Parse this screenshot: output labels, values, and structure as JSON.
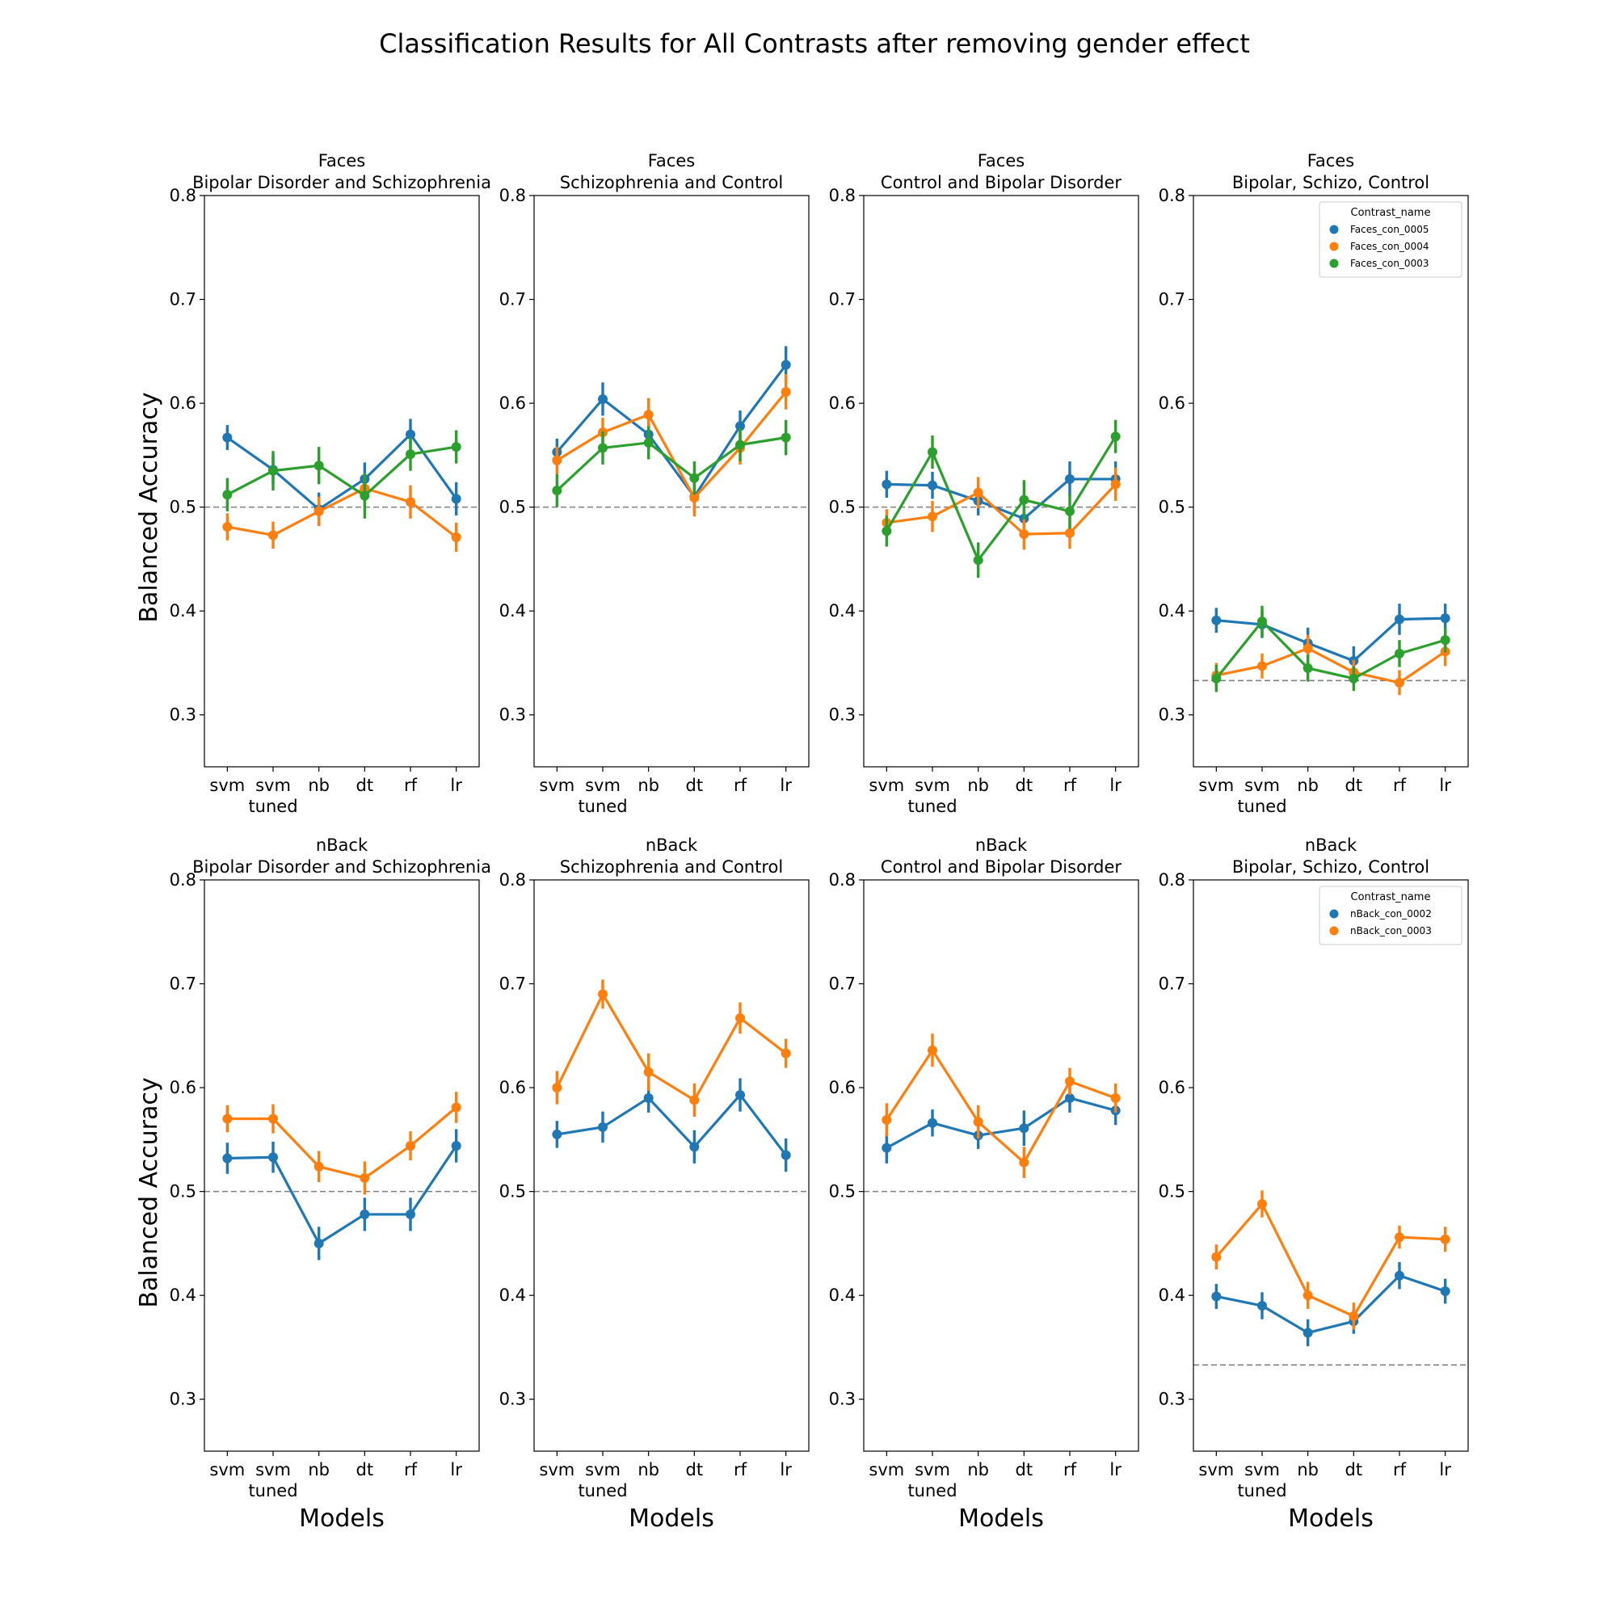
{
  "title": "Classification Results for All Contrasts after removing gender effect",
  "chart_data": {
    "type": "line",
    "title": "Classification Results for All Contrasts after removing gender effect",
    "xlabel": "Models",
    "ylabel": "Balanced Accuracy",
    "categories": [
      "svm",
      "svm\ntuned",
      "nb",
      "dt",
      "rf",
      "lr"
    ],
    "ylim": [
      0.25,
      0.8
    ],
    "yticks": [
      0.3,
      0.4,
      0.5,
      0.6,
      0.7,
      0.8
    ],
    "legend_placement": "top-right",
    "colors": {
      "Faces_con_0005": "#1f77b4",
      "Faces_con_0004": "#ff7f0e",
      "Faces_con_0003": "#2ca02c",
      "nBack_con_0002": "#1f77b4",
      "nBack_con_0003": "#ff7f0e",
      "baseline": "#808080"
    },
    "panels": [
      {
        "title_line1": "Faces",
        "title_line2": "Bipolar Disorder and Schizophrenia",
        "chance": 0.5,
        "series": [
          {
            "name": "Faces_con_0005",
            "values": [
              0.567,
              0.536,
              0.498,
              0.527,
              0.57,
              0.508
            ],
            "err": [
              0.012,
              0.014,
              0.016,
              0.016,
              0.015,
              0.016
            ]
          },
          {
            "name": "Faces_con_0004",
            "values": [
              0.481,
              0.473,
              0.496,
              0.518,
              0.505,
              0.471
            ],
            "err": [
              0.013,
              0.013,
              0.014,
              0.013,
              0.016,
              0.014
            ]
          },
          {
            "name": "Faces_con_0003",
            "values": [
              0.512,
              0.535,
              0.54,
              0.511,
              0.551,
              0.558
            ],
            "err": [
              0.016,
              0.019,
              0.018,
              0.022,
              0.016,
              0.016
            ]
          }
        ]
      },
      {
        "title_line1": "Faces",
        "title_line2": "Schizophrenia and Control",
        "chance": 0.5,
        "series": [
          {
            "name": "Faces_con_0005",
            "values": [
              0.553,
              0.604,
              0.57,
              0.51,
              0.578,
              0.637
            ],
            "err": [
              0.013,
              0.016,
              0.015,
              0.016,
              0.015,
              0.018
            ]
          },
          {
            "name": "Faces_con_0004",
            "values": [
              0.545,
              0.572,
              0.589,
              0.509,
              0.557,
              0.611
            ],
            "err": [
              0.013,
              0.014,
              0.016,
              0.018,
              0.016,
              0.017
            ]
          },
          {
            "name": "Faces_con_0003",
            "values": [
              0.516,
              0.557,
              0.562,
              0.528,
              0.56,
              0.567
            ],
            "err": [
              0.016,
              0.016,
              0.016,
              0.016,
              0.016,
              0.017
            ]
          }
        ]
      },
      {
        "title_line1": "Faces",
        "title_line2": "Control and Bipolar Disorder",
        "chance": 0.5,
        "series": [
          {
            "name": "Faces_con_0005",
            "values": [
              0.522,
              0.521,
              0.506,
              0.489,
              0.527,
              0.527
            ],
            "err": [
              0.013,
              0.013,
              0.014,
              0.014,
              0.017,
              0.017
            ]
          },
          {
            "name": "Faces_con_0004",
            "values": [
              0.485,
              0.491,
              0.514,
              0.474,
              0.475,
              0.522
            ],
            "err": [
              0.013,
              0.015,
              0.015,
              0.015,
              0.015,
              0.016
            ]
          },
          {
            "name": "Faces_con_0003",
            "values": [
              0.477,
              0.553,
              0.449,
              0.507,
              0.496,
              0.568
            ],
            "err": [
              0.015,
              0.016,
              0.017,
              0.019,
              0.017,
              0.016
            ]
          }
        ]
      },
      {
        "title_line1": "Faces",
        "title_line2": "Bipolar, Schizo, Control",
        "chance": 0.333,
        "legend_title": "Contrast_name",
        "series": [
          {
            "name": "Faces_con_0005",
            "values": [
              0.391,
              0.387,
              0.369,
              0.352,
              0.392,
              0.393
            ],
            "err": [
              0.012,
              0.013,
              0.015,
              0.014,
              0.015,
              0.014
            ]
          },
          {
            "name": "Faces_con_0004",
            "values": [
              0.338,
              0.347,
              0.364,
              0.341,
              0.331,
              0.361
            ],
            "err": [
              0.012,
              0.012,
              0.013,
              0.012,
              0.012,
              0.014
            ]
          },
          {
            "name": "Faces_con_0003",
            "values": [
              0.335,
              0.39,
              0.345,
              0.335,
              0.359,
              0.372
            ],
            "err": [
              0.013,
              0.015,
              0.013,
              0.012,
              0.013,
              0.012
            ]
          }
        ]
      },
      {
        "title_line1": "nBack",
        "title_line2": "Bipolar Disorder and Schizophrenia",
        "chance": 0.5,
        "series": [
          {
            "name": "nBack_con_0002",
            "values": [
              0.532,
              0.533,
              0.45,
              0.478,
              0.478,
              0.544
            ],
            "err": [
              0.015,
              0.015,
              0.016,
              0.016,
              0.016,
              0.016
            ]
          },
          {
            "name": "nBack_con_0003",
            "values": [
              0.57,
              0.57,
              0.524,
              0.513,
              0.544,
              0.581
            ],
            "err": [
              0.013,
              0.014,
              0.015,
              0.016,
              0.014,
              0.015
            ]
          }
        ]
      },
      {
        "title_line1": "nBack",
        "title_line2": "Schizophrenia and Control",
        "chance": 0.5,
        "series": [
          {
            "name": "nBack_con_0002",
            "values": [
              0.555,
              0.562,
              0.59,
              0.543,
              0.593,
              0.535
            ],
            "err": [
              0.013,
              0.015,
              0.014,
              0.016,
              0.016,
              0.016
            ]
          },
          {
            "name": "nBack_con_0003",
            "values": [
              0.6,
              0.69,
              0.615,
              0.588,
              0.667,
              0.633
            ],
            "err": [
              0.016,
              0.014,
              0.018,
              0.016,
              0.015,
              0.014
            ]
          }
        ]
      },
      {
        "title_line1": "nBack",
        "title_line2": "Control and Bipolar Disorder",
        "chance": 0.5,
        "series": [
          {
            "name": "nBack_con_0002",
            "values": [
              0.542,
              0.566,
              0.554,
              0.561,
              0.59,
              0.578
            ],
            "err": [
              0.015,
              0.013,
              0.013,
              0.017,
              0.014,
              0.014
            ]
          },
          {
            "name": "nBack_con_0003",
            "values": [
              0.569,
              0.636,
              0.567,
              0.528,
              0.606,
              0.59
            ],
            "err": [
              0.016,
              0.016,
              0.016,
              0.015,
              0.013,
              0.014
            ]
          }
        ]
      },
      {
        "title_line1": "nBack",
        "title_line2": "Bipolar, Schizo, Control",
        "chance": 0.333,
        "legend_title": "Contrast_name",
        "series": [
          {
            "name": "nBack_con_0002",
            "values": [
              0.399,
              0.39,
              0.364,
              0.375,
              0.419,
              0.404
            ],
            "err": [
              0.012,
              0.013,
              0.013,
              0.012,
              0.013,
              0.012
            ]
          },
          {
            "name": "nBack_con_0003",
            "values": [
              0.437,
              0.488,
              0.4,
              0.38,
              0.456,
              0.454
            ],
            "err": [
              0.012,
              0.013,
              0.013,
              0.013,
              0.011,
              0.012
            ]
          }
        ]
      }
    ]
  }
}
